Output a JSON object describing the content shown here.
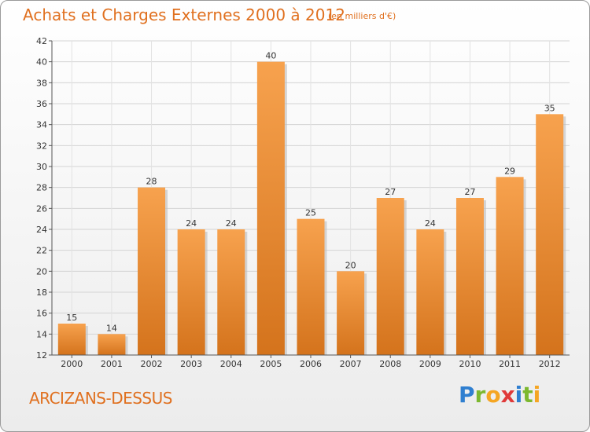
{
  "header": {
    "title": "Achats et Charges Externes 2000 à 2012",
    "subtitle": "(en milliers d'€)"
  },
  "footer": {
    "commune": "ARCIZANS-DESSUS",
    "logo_letters": [
      "P",
      "r",
      "o",
      "x",
      "i",
      "t",
      "i"
    ],
    "logo_colors": [
      "#2f7fd0",
      "#7cb82f",
      "#f5a623",
      "#e03a3a",
      "#2f7fd0",
      "#7cb82f",
      "#f5a623"
    ]
  },
  "chart_data": {
    "type": "bar",
    "categories": [
      "2000",
      "2001",
      "2002",
      "2003",
      "2004",
      "2005",
      "2006",
      "2007",
      "2008",
      "2009",
      "2010",
      "2011",
      "2012"
    ],
    "values": [
      15,
      14,
      28,
      24,
      24,
      40,
      25,
      20,
      27,
      24,
      27,
      29,
      35
    ],
    "title": "Achats et Charges Externes 2000 à 2012",
    "ylim": [
      12,
      42
    ],
    "yticks": [
      12,
      14,
      16,
      18,
      20,
      22,
      24,
      26,
      28,
      30,
      32,
      34,
      36,
      38,
      40,
      42
    ],
    "grid": true,
    "bar_color_top": "#f7a24e",
    "bar_color_bottom": "#d4731c"
  }
}
